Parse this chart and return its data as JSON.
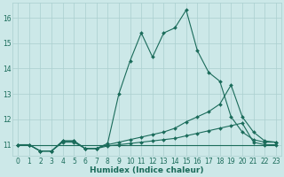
{
  "xlabel": "Humidex (Indice chaleur)",
  "background_color": "#cce8e8",
  "grid_color": "#aacfcf",
  "line_color": "#1a6b5a",
  "xlim": [
    -0.5,
    23.5
  ],
  "ylim": [
    10.55,
    16.6
  ],
  "yticks": [
    11,
    12,
    13,
    14,
    15,
    16
  ],
  "xticks": [
    0,
    1,
    2,
    3,
    4,
    5,
    6,
    7,
    8,
    9,
    10,
    11,
    12,
    13,
    14,
    15,
    16,
    17,
    18,
    19,
    20,
    21,
    22,
    23
  ],
  "series1_x": [
    0,
    1,
    2,
    3,
    4,
    5,
    6,
    7,
    8,
    9,
    10,
    11,
    12,
    13,
    14,
    15,
    16,
    17,
    18,
    19,
    20,
    21,
    22,
    23
  ],
  "series1_y": [
    11.0,
    11.0,
    10.75,
    10.75,
    11.15,
    11.15,
    10.85,
    10.85,
    11.05,
    13.0,
    14.3,
    15.4,
    14.45,
    15.4,
    15.6,
    16.3,
    14.7,
    13.85,
    13.5,
    12.1,
    11.5,
    11.2,
    11.1,
    11.1
  ],
  "series2_x": [
    0,
    1,
    2,
    3,
    4,
    5,
    6,
    7,
    8,
    9,
    10,
    11,
    12,
    13,
    14,
    15,
    16,
    17,
    18,
    19,
    20,
    21,
    22,
    23
  ],
  "series2_y": [
    11.0,
    11.0,
    10.75,
    10.75,
    11.15,
    11.15,
    10.85,
    10.85,
    11.0,
    11.1,
    11.2,
    11.3,
    11.4,
    11.5,
    11.65,
    11.9,
    12.1,
    12.3,
    12.6,
    13.35,
    12.1,
    11.5,
    11.15,
    11.1
  ],
  "series3_x": [
    0,
    1,
    2,
    3,
    4,
    5,
    6,
    7,
    8,
    9,
    10,
    11,
    12,
    13,
    14,
    15,
    16,
    17,
    18,
    19,
    20,
    21,
    22,
    23
  ],
  "series3_y": [
    11.0,
    11.0,
    10.75,
    10.75,
    11.1,
    11.1,
    10.85,
    10.85,
    10.95,
    11.0,
    11.05,
    11.1,
    11.15,
    11.2,
    11.25,
    11.35,
    11.45,
    11.55,
    11.65,
    11.75,
    11.85,
    11.1,
    11.0,
    11.0
  ],
  "series4_x": [
    0,
    23
  ],
  "series4_y": [
    11.0,
    11.0
  ]
}
